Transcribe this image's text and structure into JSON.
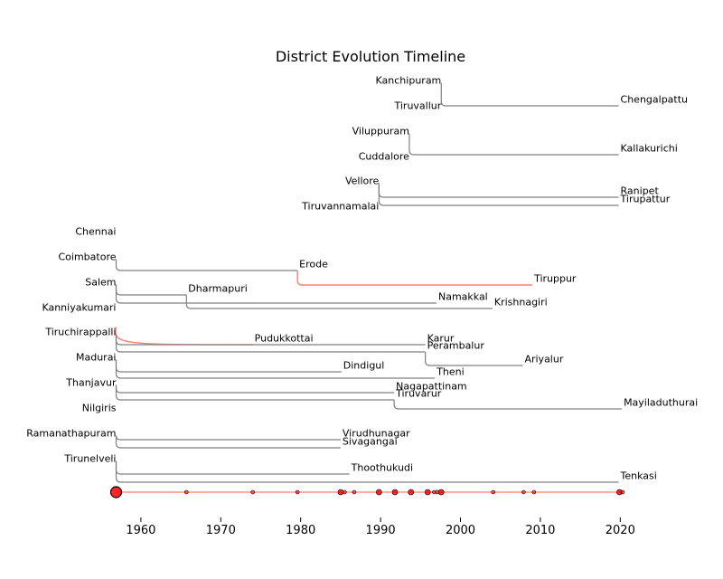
{
  "chart_data": {
    "type": "timeline",
    "title": "District Evolution Timeline",
    "xlabel": "",
    "ylabel": "",
    "xlim": [
      1954.5,
      2021.5
    ],
    "x_ticks": [
      1960,
      1970,
      1980,
      1990,
      2000,
      2010,
      2020
    ],
    "base_year": 1956.9,
    "colors": {
      "branch": "#808080",
      "highlight": "#fa8072",
      "marker_fill": "#ff0000",
      "marker_edge": "#000000"
    },
    "parents": [
      {
        "name": "Kanchipuram",
        "year": 1997.6
      },
      {
        "name": "Tiruvallur",
        "year": 1997.6
      },
      {
        "name": "Viluppuram",
        "year": 1993.6
      },
      {
        "name": "Cuddalore",
        "year": 1993.6
      },
      {
        "name": "Vellore",
        "year": 1989.8
      },
      {
        "name": "Tiruvannamalai",
        "year": 1989.8
      },
      {
        "name": "Chennai",
        "year": 1956.9
      },
      {
        "name": "Coimbatore",
        "year": 1956.9
      },
      {
        "name": "Salem",
        "year": 1956.9
      },
      {
        "name": "Kanniyakumari",
        "year": 1956.9
      },
      {
        "name": "Tiruchirappalli",
        "year": 1956.9
      },
      {
        "name": "Madurai",
        "year": 1956.9
      },
      {
        "name": "Thanjavur",
        "year": 1956.9
      },
      {
        "name": "Nilgiris",
        "year": 1956.9
      },
      {
        "name": "Ramanathapuram",
        "year": 1956.9
      },
      {
        "name": "Tirunelveli",
        "year": 1956.9
      }
    ],
    "branches": [
      {
        "from": "Kanchipuram",
        "to": "Chengalpattu",
        "start": 1997.6,
        "end": 2019.8,
        "highlight": false
      },
      {
        "from": "Viluppuram",
        "to": "Kallakurichi",
        "start": 1993.6,
        "end": 2019.8,
        "highlight": false
      },
      {
        "from": "Vellore",
        "to": "Ranipet",
        "start": 1989.8,
        "end": 2019.8,
        "highlight": false
      },
      {
        "from": "Vellore",
        "to": "Tirupattur",
        "start": 1989.8,
        "end": 2019.8,
        "highlight": false
      },
      {
        "from": "Coimbatore",
        "to": "Erode",
        "start": 1956.9,
        "end": 1979.6,
        "highlight": false
      },
      {
        "from": "Erode",
        "to": "Tiruppur",
        "start": 1979.6,
        "end": 2009.0,
        "highlight": true
      },
      {
        "from": "Salem",
        "to": "Dharmapuri",
        "start": 1956.9,
        "end": 1965.7,
        "highlight": false
      },
      {
        "from": "Salem",
        "to": "Namakkal",
        "start": 1956.9,
        "end": 1997.0,
        "highlight": false
      },
      {
        "from": "Dharmapuri",
        "to": "Krishnagiri",
        "start": 1965.7,
        "end": 2004.0,
        "highlight": false
      },
      {
        "from": "Tiruchirappalli",
        "to": "Pudukkottai",
        "start": 1956.9,
        "end": 1974.0,
        "highlight": true
      },
      {
        "from": "Tiruchirappalli",
        "to": "Karur",
        "start": 1956.9,
        "end": 1995.6,
        "highlight": false
      },
      {
        "from": "Tiruchirappalli",
        "to": "Perambalur",
        "start": 1956.9,
        "end": 1995.6,
        "highlight": false
      },
      {
        "from": "Perambalur",
        "to": "Ariyalur",
        "start": 1995.6,
        "end": 2007.8,
        "highlight": false
      },
      {
        "from": "Madurai",
        "to": "Dindigul",
        "start": 1956.9,
        "end": 1985.1,
        "highlight": false
      },
      {
        "from": "Madurai",
        "to": "Theni",
        "start": 1956.9,
        "end": 1996.8,
        "highlight": false
      },
      {
        "from": "Thanjavur",
        "to": "Nagapattinam",
        "start": 1956.9,
        "end": 1991.7,
        "highlight": false
      },
      {
        "from": "Thanjavur",
        "to": "Tiruvarur",
        "start": 1956.9,
        "end": 1991.7,
        "highlight": false
      },
      {
        "from": "Tiruvarur",
        "to": "Mayiladuthurai",
        "start": 1991.7,
        "end": 2020.2,
        "highlight": false
      },
      {
        "from": "Ramanathapuram",
        "to": "Virudhunagar",
        "start": 1956.9,
        "end": 1985.0,
        "highlight": false
      },
      {
        "from": "Ramanathapuram",
        "to": "Sivagangai",
        "start": 1956.9,
        "end": 1985.0,
        "highlight": false
      },
      {
        "from": "Tirunelveli",
        "to": "Thoothukudi",
        "start": 1956.9,
        "end": 1986.1,
        "highlight": false
      },
      {
        "from": "Tirunelveli",
        "to": "Tenkasi",
        "start": 1956.9,
        "end": 2019.8,
        "highlight": false
      }
    ],
    "event_markers": [
      {
        "year": 1956.9,
        "size": "large"
      },
      {
        "year": 1965.7,
        "size": "small"
      },
      {
        "year": 1974.0,
        "size": "small"
      },
      {
        "year": 1979.6,
        "size": "small"
      },
      {
        "year": 1985.0,
        "size": "medium"
      },
      {
        "year": 1985.5,
        "size": "small"
      },
      {
        "year": 1986.7,
        "size": "small"
      },
      {
        "year": 1989.8,
        "size": "medium"
      },
      {
        "year": 1991.8,
        "size": "medium"
      },
      {
        "year": 1993.8,
        "size": "medium"
      },
      {
        "year": 1995.9,
        "size": "medium"
      },
      {
        "year": 1996.7,
        "size": "small"
      },
      {
        "year": 1997.1,
        "size": "small"
      },
      {
        "year": 1997.6,
        "size": "medium"
      },
      {
        "year": 2004.1,
        "size": "small"
      },
      {
        "year": 2007.9,
        "size": "small"
      },
      {
        "year": 2009.2,
        "size": "small"
      },
      {
        "year": 2019.9,
        "size": "medium"
      },
      {
        "year": 2020.3,
        "size": "small"
      }
    ]
  }
}
